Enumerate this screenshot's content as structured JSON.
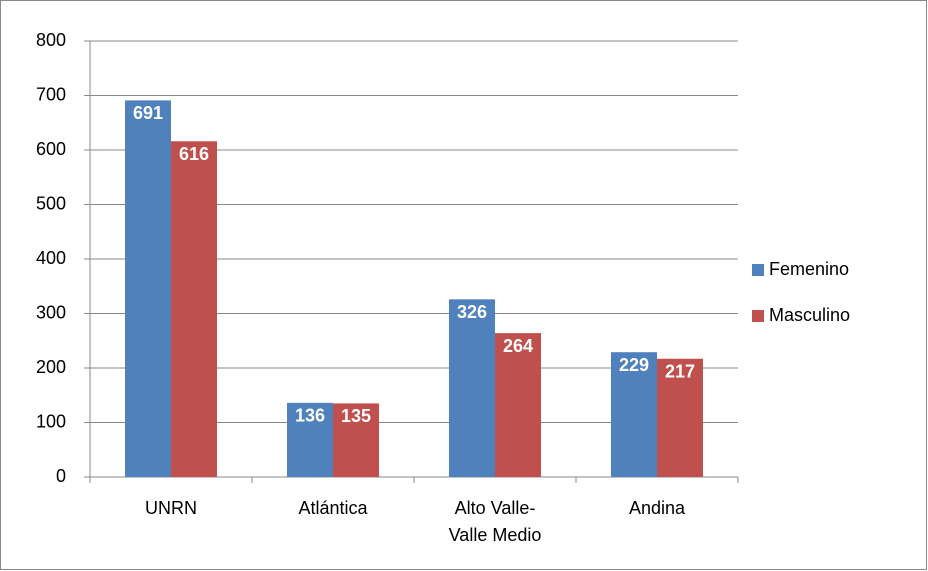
{
  "chart_data": {
    "type": "bar",
    "categories": [
      "UNRN",
      "Atlántica",
      "Alto Valle-Valle Medio",
      "Andina"
    ],
    "series": [
      {
        "name": "Femenino",
        "color": "#4f81bd",
        "values": [
          691,
          136,
          326,
          229
        ]
      },
      {
        "name": "Masculino",
        "color": "#c0504d",
        "values": [
          616,
          135,
          264,
          217
        ]
      }
    ],
    "ylim": [
      0,
      800
    ],
    "yticks": [
      0,
      100,
      200,
      300,
      400,
      500,
      600,
      700,
      800
    ],
    "grid": true,
    "legend": "right"
  }
}
